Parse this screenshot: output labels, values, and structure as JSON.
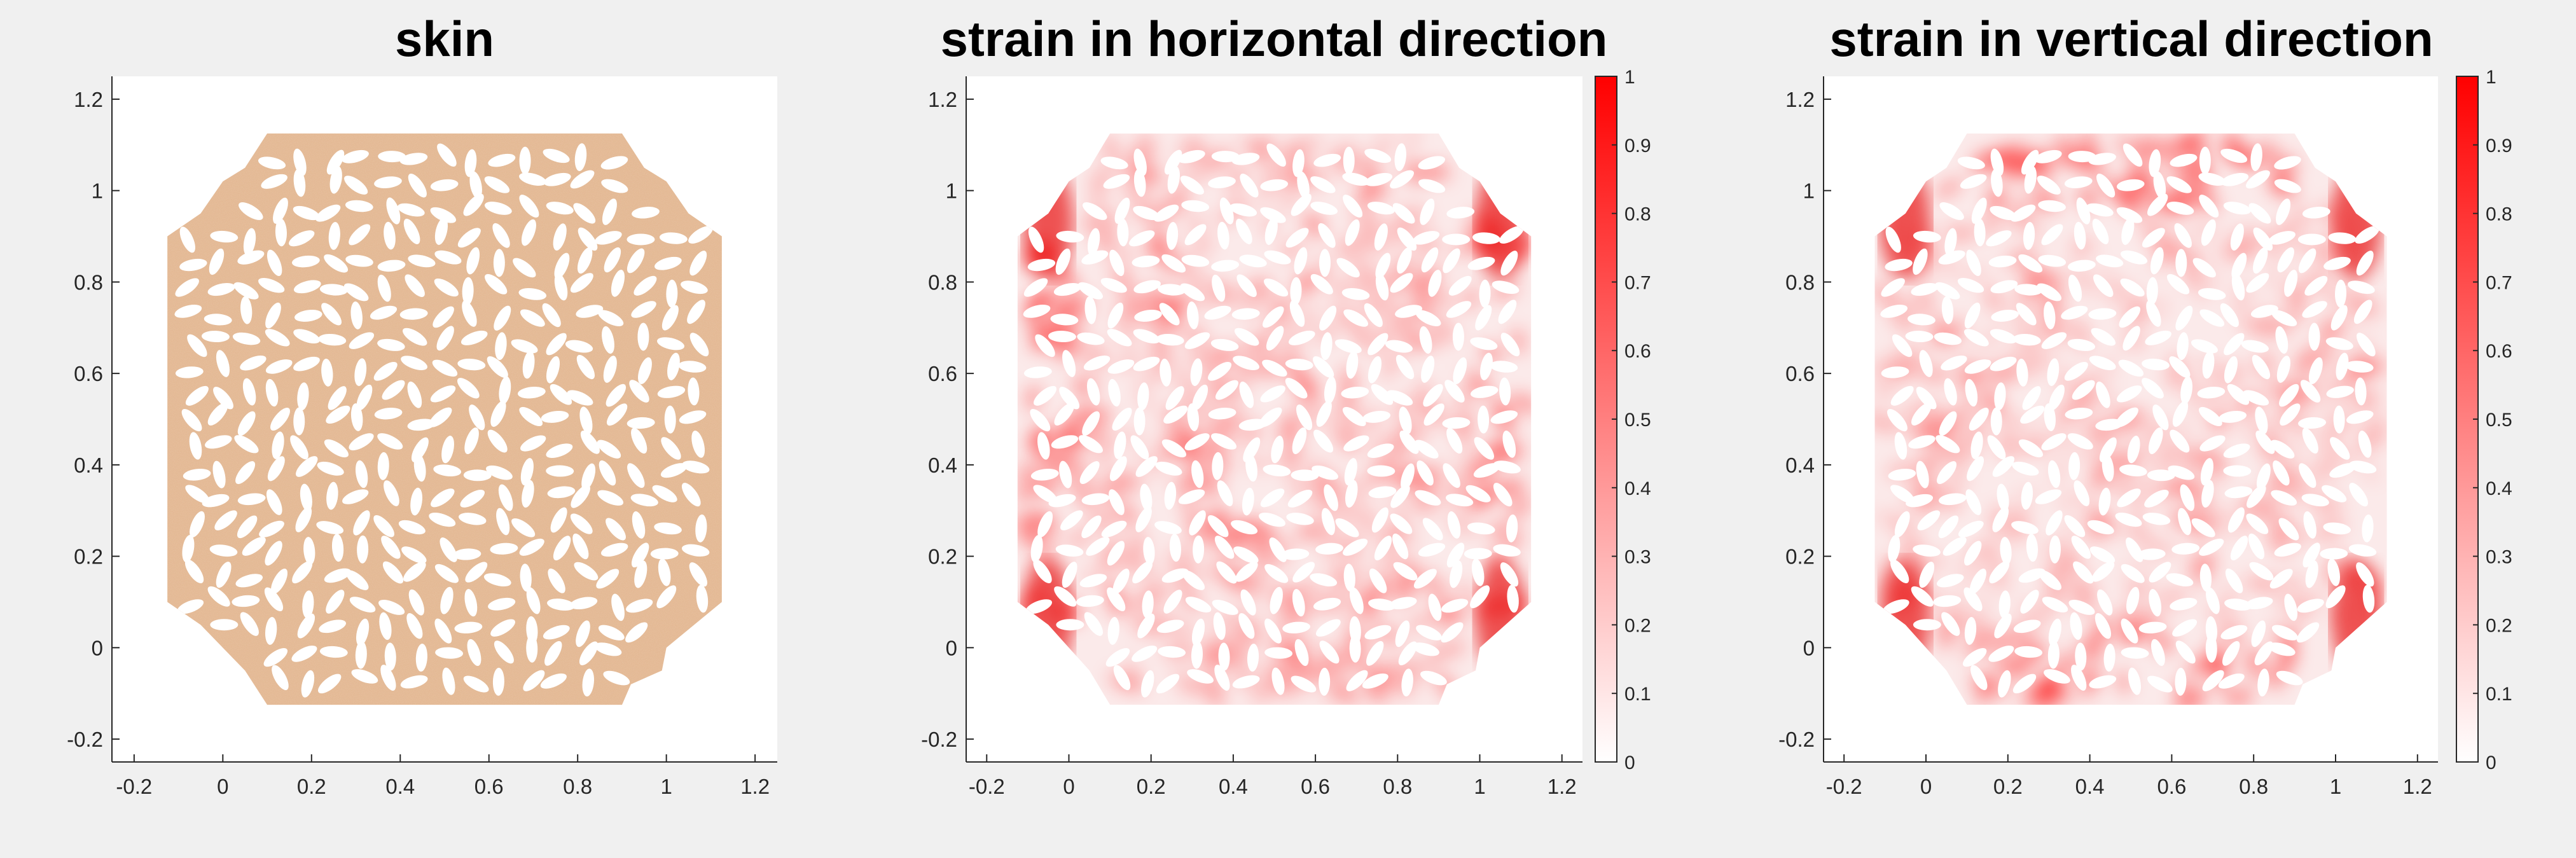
{
  "figure": {
    "background": "#f0f0f0",
    "skin_color": "#e2b48c",
    "hole_color": "#ffffff",
    "strain_color_max": "#ff0000",
    "strain_color_min": "#ffffff"
  },
  "chart_data": [
    {
      "type": "heatmap",
      "id": "skin",
      "title": "skin",
      "xlim": [
        -0.25,
        1.25
      ],
      "ylim": [
        -0.25,
        1.25
      ],
      "xticks": [
        -0.2,
        0,
        0.2,
        0.4,
        0.6,
        0.8,
        1,
        1.2
      ],
      "xtick_labels": [
        "-0.2",
        "0",
        "0.2",
        "0.4",
        "0.6",
        "0.8",
        "1",
        "1.2"
      ],
      "yticks": [
        -0.2,
        0,
        0.2,
        0.4,
        0.6,
        0.8,
        1,
        1.2
      ],
      "ytick_labels": [
        "-0.2",
        "0",
        "0.2",
        "0.4",
        "0.6",
        "0.8",
        "1",
        "1.2"
      ],
      "grid": false,
      "fill": "skin texture with elliptical cut-outs",
      "colorbar": false
    },
    {
      "type": "heatmap",
      "id": "strain-horizontal",
      "title": "strain in horizontal direction",
      "xlim": [
        -0.25,
        1.25
      ],
      "ylim": [
        -0.25,
        1.25
      ],
      "xticks": [
        -0.2,
        0,
        0.2,
        0.4,
        0.6,
        0.8,
        1,
        1.2
      ],
      "xtick_labels": [
        "-0.2",
        "0",
        "0.2",
        "0.4",
        "0.6",
        "0.8",
        "1",
        "1.2"
      ],
      "yticks": [
        -0.2,
        0,
        0.2,
        0.4,
        0.6,
        0.8,
        1,
        1.2
      ],
      "ytick_labels": [
        "-0.2",
        "0",
        "0.2",
        "0.4",
        "0.6",
        "0.8",
        "1",
        "1.2"
      ],
      "grid": false,
      "colorbar": {
        "range": [
          0,
          1
        ],
        "ticks": [
          0,
          0.1,
          0.2,
          0.3,
          0.4,
          0.5,
          0.6,
          0.7,
          0.8,
          0.9,
          1
        ],
        "tick_labels": [
          "0",
          "0.1",
          "0.2",
          "0.3",
          "0.4",
          "0.5",
          "0.6",
          "0.7",
          "0.8",
          "0.9",
          "1"
        ],
        "colormap": "white-to-red"
      }
    },
    {
      "type": "heatmap",
      "id": "strain-vertical",
      "title": "strain in vertical direction",
      "xlim": [
        -0.25,
        1.25
      ],
      "ylim": [
        -0.25,
        1.25
      ],
      "xticks": [
        -0.2,
        0,
        0.2,
        0.4,
        0.6,
        0.8,
        1,
        1.2
      ],
      "xtick_labels": [
        "-0.2",
        "0",
        "0.2",
        "0.4",
        "0.6",
        "0.8",
        "1",
        "1.2"
      ],
      "yticks": [
        -0.2,
        0,
        0.2,
        0.4,
        0.6,
        0.8,
        1,
        1.2
      ],
      "ytick_labels": [
        "-0.2",
        "0",
        "0.2",
        "0.4",
        "0.6",
        "0.8",
        "1",
        "1.2"
      ],
      "grid": false,
      "colorbar": {
        "range": [
          0,
          1
        ],
        "ticks": [
          0,
          0.1,
          0.2,
          0.3,
          0.4,
          0.5,
          0.6,
          0.7,
          0.8,
          0.9,
          1
        ],
        "tick_labels": [
          "0",
          "0.1",
          "0.2",
          "0.3",
          "0.4",
          "0.5",
          "0.6",
          "0.7",
          "0.8",
          "0.9",
          "1"
        ],
        "colormap": "white-to-red"
      }
    }
  ]
}
